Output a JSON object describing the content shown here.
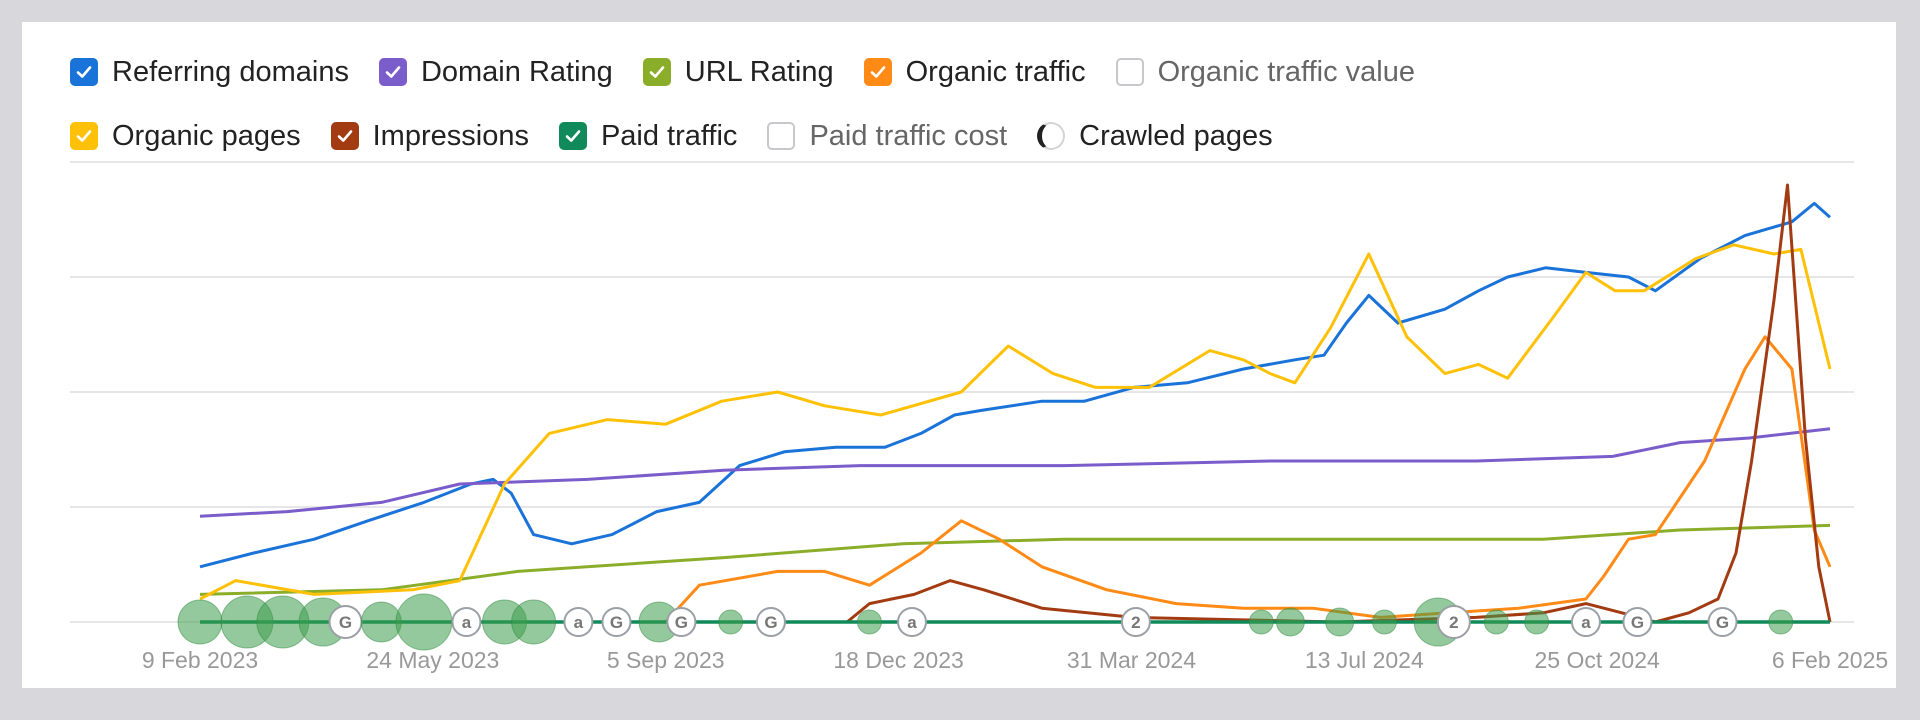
{
  "legend": {
    "row1": [
      {
        "key": "referring_domains",
        "label": "Referring domains",
        "checked": true,
        "color": "#1a73d9"
      },
      {
        "key": "domain_rating",
        "label": "Domain Rating",
        "checked": true,
        "color": "#7b5ccb"
      },
      {
        "key": "url_rating",
        "label": "URL Rating",
        "checked": true,
        "color": "#8aad2a"
      },
      {
        "key": "organic_traffic",
        "label": "Organic traffic",
        "checked": true,
        "color": "#ff8a16"
      },
      {
        "key": "organic_traffic_value",
        "label": "Organic traffic value",
        "checked": false,
        "color": "#c8c8cc"
      }
    ],
    "row2": [
      {
        "key": "organic_pages",
        "label": "Organic pages",
        "checked": true,
        "color": "#ffc107"
      },
      {
        "key": "impressions",
        "label": "Impressions",
        "checked": true,
        "color": "#a23b12"
      },
      {
        "key": "paid_traffic",
        "label": "Paid traffic",
        "checked": true,
        "color": "#108a5a"
      },
      {
        "key": "paid_traffic_cost",
        "label": "Paid traffic cost",
        "checked": false,
        "color": "#c8c8cc"
      },
      {
        "key": "crawled_pages",
        "label": "Crawled pages",
        "checked": false,
        "radio": true,
        "color": "#222222"
      }
    ]
  },
  "chart_data": {
    "type": "line",
    "x_start": "2023-02-09",
    "x_end": "2025-02-06",
    "x_ticks": [
      {
        "label": "9 Feb 2023",
        "date": "2023-02-09"
      },
      {
        "label": "24 May 2023",
        "date": "2023-05-24"
      },
      {
        "label": "5 Sep 2023",
        "date": "2023-09-05"
      },
      {
        "label": "18 Dec 2023",
        "date": "2023-12-18"
      },
      {
        "label": "31 Mar 2024",
        "date": "2024-03-31"
      },
      {
        "label": "13 Jul 2024",
        "date": "2024-07-13"
      },
      {
        "label": "25 Oct 2024",
        "date": "2024-10-25"
      },
      {
        "label": "6 Feb 2025",
        "date": "2025-02-06"
      }
    ],
    "ylim": [
      0,
      100
    ],
    "y_grid": [
      0,
      25,
      50,
      75,
      100
    ],
    "grid": true,
    "series": [
      {
        "name": "Referring domains",
        "color": "#1a73d9",
        "points": [
          [
            "2023-02-09",
            12
          ],
          [
            "2023-03-05",
            15
          ],
          [
            "2023-04-01",
            18
          ],
          [
            "2023-04-25",
            22
          ],
          [
            "2023-05-20",
            26
          ],
          [
            "2023-06-10",
            30
          ],
          [
            "2023-06-20",
            31
          ],
          [
            "2023-06-28",
            28
          ],
          [
            "2023-07-08",
            19
          ],
          [
            "2023-07-25",
            17
          ],
          [
            "2023-08-12",
            19
          ],
          [
            "2023-09-01",
            24
          ],
          [
            "2023-09-20",
            26
          ],
          [
            "2023-10-08",
            34
          ],
          [
            "2023-10-28",
            37
          ],
          [
            "2023-11-20",
            38
          ],
          [
            "2023-12-12",
            38
          ],
          [
            "2023-12-28",
            41
          ],
          [
            "2024-01-12",
            45
          ],
          [
            "2024-01-24",
            46
          ],
          [
            "2024-02-20",
            48
          ],
          [
            "2024-03-10",
            48
          ],
          [
            "2024-04-01",
            51
          ],
          [
            "2024-04-25",
            52
          ],
          [
            "2024-05-20",
            55
          ],
          [
            "2024-06-12",
            57
          ],
          [
            "2024-06-25",
            58
          ],
          [
            "2024-07-05",
            65
          ],
          [
            "2024-07-15",
            71
          ],
          [
            "2024-07-28",
            65
          ],
          [
            "2024-08-18",
            68
          ],
          [
            "2024-09-02",
            72
          ],
          [
            "2024-09-15",
            75
          ],
          [
            "2024-10-02",
            77
          ],
          [
            "2024-10-20",
            76
          ],
          [
            "2024-11-08",
            75
          ],
          [
            "2024-11-20",
            72
          ],
          [
            "2024-12-10",
            79
          ],
          [
            "2024-12-30",
            84
          ],
          [
            "2025-01-20",
            87
          ],
          [
            "2025-01-30",
            91
          ],
          [
            "2025-02-06",
            88
          ]
        ]
      },
      {
        "name": "Domain Rating",
        "color": "#7b5ccb",
        "points": [
          [
            "2023-02-09",
            23
          ],
          [
            "2023-03-20",
            24
          ],
          [
            "2023-05-01",
            26
          ],
          [
            "2023-06-05",
            30
          ],
          [
            "2023-08-01",
            31
          ],
          [
            "2023-10-01",
            33
          ],
          [
            "2023-12-01",
            34
          ],
          [
            "2024-03-01",
            34
          ],
          [
            "2024-06-01",
            35
          ],
          [
            "2024-09-01",
            35
          ],
          [
            "2024-11-01",
            36
          ],
          [
            "2024-12-01",
            39
          ],
          [
            "2025-01-01",
            40
          ],
          [
            "2025-02-06",
            42
          ]
        ]
      },
      {
        "name": "URL Rating",
        "color": "#8aad2a",
        "points": [
          [
            "2023-02-09",
            6
          ],
          [
            "2023-05-01",
            7
          ],
          [
            "2023-07-01",
            11
          ],
          [
            "2023-10-01",
            14
          ],
          [
            "2023-12-20",
            17
          ],
          [
            "2024-03-01",
            18
          ],
          [
            "2024-07-01",
            18
          ],
          [
            "2024-10-01",
            18
          ],
          [
            "2024-12-01",
            20
          ],
          [
            "2025-02-06",
            21
          ]
        ]
      },
      {
        "name": "Organic traffic",
        "color": "#ff8a16",
        "points": [
          [
            "2023-02-09",
            0
          ],
          [
            "2023-09-05",
            0
          ],
          [
            "2023-09-20",
            8
          ],
          [
            "2023-10-25",
            11
          ],
          [
            "2023-11-15",
            11
          ],
          [
            "2023-12-05",
            8
          ],
          [
            "2023-12-28",
            15
          ],
          [
            "2024-01-15",
            22
          ],
          [
            "2024-02-01",
            18
          ],
          [
            "2024-02-20",
            12
          ],
          [
            "2024-03-20",
            7
          ],
          [
            "2024-04-20",
            4
          ],
          [
            "2024-05-20",
            3
          ],
          [
            "2024-06-20",
            3
          ],
          [
            "2024-07-20",
            1
          ],
          [
            "2024-08-20",
            2
          ],
          [
            "2024-09-20",
            3
          ],
          [
            "2024-10-20",
            5
          ],
          [
            "2024-10-28",
            10
          ],
          [
            "2024-11-08",
            18
          ],
          [
            "2024-11-20",
            19
          ],
          [
            "2024-12-12",
            35
          ],
          [
            "2024-12-30",
            55
          ],
          [
            "2025-01-08",
            62
          ],
          [
            "2025-01-20",
            55
          ],
          [
            "2025-01-30",
            20
          ],
          [
            "2025-02-06",
            12
          ]
        ]
      },
      {
        "name": "Organic pages",
        "color": "#ffc107",
        "points": [
          [
            "2023-02-09",
            5
          ],
          [
            "2023-02-25",
            9
          ],
          [
            "2023-04-01",
            6
          ],
          [
            "2023-05-15",
            7
          ],
          [
            "2023-06-05",
            9
          ],
          [
            "2023-06-25",
            30
          ],
          [
            "2023-07-15",
            41
          ],
          [
            "2023-08-10",
            44
          ],
          [
            "2023-09-05",
            43
          ],
          [
            "2023-09-30",
            48
          ],
          [
            "2023-10-25",
            50
          ],
          [
            "2023-11-15",
            47
          ],
          [
            "2023-12-10",
            45
          ],
          [
            "2024-01-15",
            50
          ],
          [
            "2024-02-05",
            60
          ],
          [
            "2024-02-25",
            54
          ],
          [
            "2024-03-15",
            51
          ],
          [
            "2024-04-08",
            51
          ],
          [
            "2024-05-05",
            59
          ],
          [
            "2024-05-20",
            57
          ],
          [
            "2024-06-01",
            54
          ],
          [
            "2024-06-12",
            52
          ],
          [
            "2024-06-28",
            64
          ],
          [
            "2024-07-15",
            80
          ],
          [
            "2024-08-01",
            62
          ],
          [
            "2024-08-18",
            54
          ],
          [
            "2024-09-02",
            56
          ],
          [
            "2024-09-15",
            53
          ],
          [
            "2024-10-05",
            66
          ],
          [
            "2024-10-20",
            76
          ],
          [
            "2024-11-02",
            72
          ],
          [
            "2024-11-15",
            72
          ],
          [
            "2024-12-08",
            79
          ],
          [
            "2024-12-25",
            82
          ],
          [
            "2025-01-12",
            80
          ],
          [
            "2025-01-24",
            81
          ],
          [
            "2025-02-06",
            55
          ]
        ]
      },
      {
        "name": "Impressions",
        "color": "#a23b12",
        "points": [
          [
            "2023-02-09",
            0
          ],
          [
            "2023-11-25",
            0
          ],
          [
            "2023-12-05",
            4
          ],
          [
            "2023-12-25",
            6
          ],
          [
            "2024-01-10",
            9
          ],
          [
            "2024-01-25",
            7
          ],
          [
            "2024-02-20",
            3
          ],
          [
            "2024-04-01",
            1
          ],
          [
            "2024-07-01",
            0
          ],
          [
            "2024-09-01",
            1
          ],
          [
            "2024-10-01",
            2
          ],
          [
            "2024-10-20",
            4
          ],
          [
            "2024-11-05",
            2
          ],
          [
            "2024-11-20",
            0
          ],
          [
            "2024-12-05",
            2
          ],
          [
            "2024-12-18",
            5
          ],
          [
            "2024-12-26",
            15
          ],
          [
            "2025-01-02",
            35
          ],
          [
            "2025-01-12",
            70
          ],
          [
            "2025-01-18",
            95
          ],
          [
            "2025-01-26",
            40
          ],
          [
            "2025-02-01",
            12
          ],
          [
            "2025-02-06",
            0
          ]
        ]
      },
      {
        "name": "Paid traffic",
        "color": "#108a5a",
        "points": [
          [
            "2023-02-09",
            0
          ],
          [
            "2025-02-06",
            0
          ]
        ]
      }
    ],
    "annotation_markers": [
      {
        "date": "2023-02-09",
        "label": "",
        "r": 22
      },
      {
        "date": "2023-03-02",
        "label": "",
        "r": 26
      },
      {
        "date": "2023-03-18",
        "label": "",
        "r": 26
      },
      {
        "date": "2023-04-05",
        "label": "",
        "r": 24
      },
      {
        "date": "2023-04-15",
        "label": "G",
        "r": 16
      },
      {
        "date": "2023-05-01",
        "label": "",
        "r": 20
      },
      {
        "date": "2023-05-20",
        "label": "",
        "r": 28
      },
      {
        "date": "2023-06-08",
        "label": "a",
        "r": 14
      },
      {
        "date": "2023-06-25",
        "label": "",
        "r": 22
      },
      {
        "date": "2023-07-08",
        "label": "",
        "r": 22
      },
      {
        "date": "2023-07-28",
        "label": "a",
        "r": 14
      },
      {
        "date": "2023-08-14",
        "label": "G",
        "r": 14
      },
      {
        "date": "2023-09-02",
        "label": "",
        "r": 20
      },
      {
        "date": "2023-09-12",
        "label": "G",
        "r": 14
      },
      {
        "date": "2023-10-04",
        "label": "",
        "r": 12
      },
      {
        "date": "2023-10-22",
        "label": "G",
        "r": 14
      },
      {
        "date": "2023-12-05",
        "label": "",
        "r": 12
      },
      {
        "date": "2023-12-24",
        "label": "a",
        "r": 14
      },
      {
        "date": "2024-04-02",
        "label": "2",
        "r": 14
      },
      {
        "date": "2024-05-28",
        "label": "",
        "r": 12
      },
      {
        "date": "2024-06-10",
        "label": "",
        "r": 14
      },
      {
        "date": "2024-07-02",
        "label": "",
        "r": 14
      },
      {
        "date": "2024-07-22",
        "label": "",
        "r": 12
      },
      {
        "date": "2024-08-15",
        "label": "",
        "r": 24
      },
      {
        "date": "2024-08-22",
        "label": "2",
        "r": 16
      },
      {
        "date": "2024-09-10",
        "label": "",
        "r": 12
      },
      {
        "date": "2024-09-28",
        "label": "",
        "r": 12
      },
      {
        "date": "2024-10-20",
        "label": "a",
        "r": 14
      },
      {
        "date": "2024-11-12",
        "label": "G",
        "r": 14
      },
      {
        "date": "2024-12-20",
        "label": "G",
        "r": 14
      },
      {
        "date": "2025-01-15",
        "label": "",
        "r": 12
      }
    ]
  }
}
